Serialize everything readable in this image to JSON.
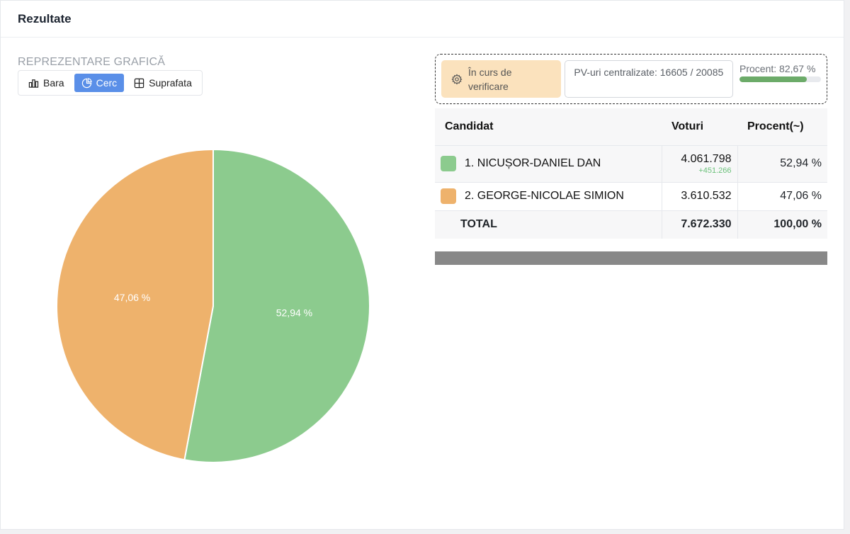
{
  "header": {
    "title": "Rezultate"
  },
  "chart_section": {
    "title": "REPREZENTARE GRAFICĂ",
    "toggle": [
      {
        "label": "Bara",
        "icon": "bar-chart-icon",
        "active": false
      },
      {
        "label": "Cerc",
        "icon": "pie-chart-icon",
        "active": true
      },
      {
        "label": "Suprafata",
        "icon": "area-grid-icon",
        "active": false
      }
    ]
  },
  "status": {
    "verification_label": "În curs de verificare",
    "pv_label": "PV-uri centralizate: 16605 / 20085",
    "percent_label": "Procent: 82,67 %",
    "percent_value": 82.67
  },
  "table": {
    "headers": {
      "candidate": "Candidat",
      "votes": "Voturi",
      "percent": "Procent(~)"
    },
    "rows": [
      {
        "name": "1. NICUȘOR-DANIEL DAN",
        "votes": "4.061.798",
        "diff": "+451.266",
        "percent": "52,94 %",
        "color": "#8ccb8e"
      },
      {
        "name": "2. GEORGE-NICOLAE SIMION",
        "votes": "3.610.532",
        "diff": "",
        "percent": "47,06 %",
        "color": "#eeb26c"
      }
    ],
    "total": {
      "label": "TOTAL",
      "votes": "7.672.330",
      "percent": "100,00 %"
    }
  },
  "chart_data": {
    "type": "pie",
    "title": "",
    "labels": [
      "1. NICUȘOR-DANIEL DAN",
      "2. GEORGE-NICOLAE SIMION"
    ],
    "values": [
      52.94,
      47.06
    ],
    "value_labels": [
      "52,94 %",
      "47,06 %"
    ],
    "colors": [
      "#8ccb8e",
      "#eeb26c"
    ],
    "start": "top, clockwise"
  }
}
